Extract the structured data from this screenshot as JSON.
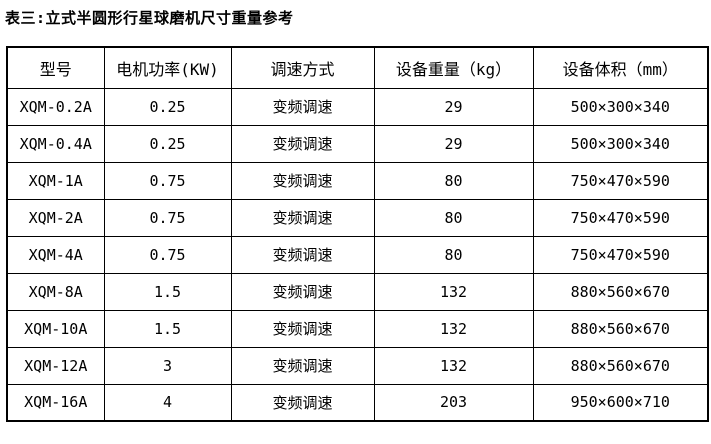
{
  "title": "表三:立式半圆形行星球磨机尺寸重量参考",
  "table": {
    "headers": [
      "型号",
      "电机功率(KW)",
      "调速方式",
      "设备重量（kg）",
      "设备体积（mm）"
    ],
    "rows": [
      [
        "XQM-0.2A",
        "0.25",
        "变频调速",
        "29",
        "500×300×340"
      ],
      [
        "XQM-0.4A",
        "0.25",
        "变频调速",
        "29",
        "500×300×340"
      ],
      [
        "XQM-1A",
        "0.75",
        "变频调速",
        "80",
        "750×470×590"
      ],
      [
        "XQM-2A",
        "0.75",
        "变频调速",
        "80",
        "750×470×590"
      ],
      [
        "XQM-4A",
        "0.75",
        "变频调速",
        "80",
        "750×470×590"
      ],
      [
        "XQM-8A",
        "1.5",
        "变频调速",
        "132",
        "880×560×670"
      ],
      [
        "XQM-10A",
        "1.5",
        "变频调速",
        "132",
        "880×560×670"
      ],
      [
        "XQM-12A",
        "3",
        "变频调速",
        "132",
        "880×560×670"
      ],
      [
        "XQM-16A",
        "4",
        "变频调速",
        "203",
        "950×600×710"
      ]
    ]
  },
  "colors": {
    "text": "#000000",
    "border": "#000000",
    "background": "#ffffff"
  }
}
